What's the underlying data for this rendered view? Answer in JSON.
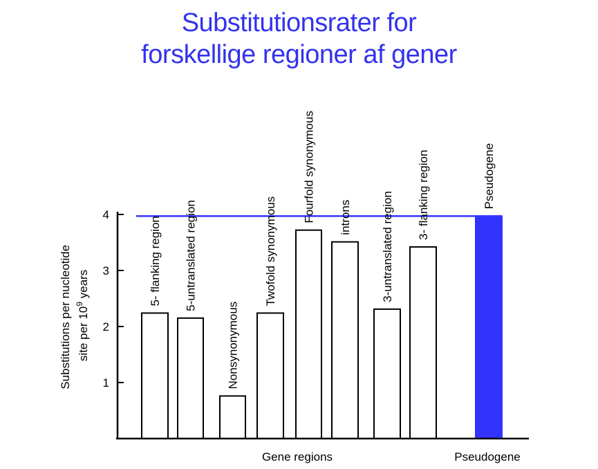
{
  "chart_data": {
    "type": "bar",
    "title_lines": [
      "Substitutionsrater for",
      "forskellige regioner af gener"
    ],
    "ylabel": {
      "line1": "Substitutions per nucleotide",
      "line2_prefix": "site per 10",
      "line2_sup": "9",
      "line2_suffix": " years"
    },
    "xlabel": "Gene regions",
    "pseudogene_xlabel": "Pseudogene",
    "ylim": [
      0,
      4
    ],
    "yticks": [
      "1",
      "2",
      "3",
      "4"
    ],
    "categories": [
      "5- flanking region",
      "5-untranslated region",
      "Nonsynonymous",
      "Twofold synonymous",
      "Fourfold synonymous",
      "introns",
      "3-untranslated region",
      "3- flanking region",
      "Pseudogene"
    ],
    "values": [
      2.24,
      2.15,
      0.76,
      2.24,
      3.72,
      3.51,
      2.31,
      3.42,
      3.97
    ],
    "highlight": [
      false,
      false,
      false,
      false,
      false,
      false,
      false,
      false,
      true
    ],
    "reference_line": 3.97,
    "colors": {
      "title": "#3333ee",
      "pseudogene": "#3333ff",
      "bar_fill": "#ffffff",
      "bar_stroke": "#000000"
    }
  }
}
